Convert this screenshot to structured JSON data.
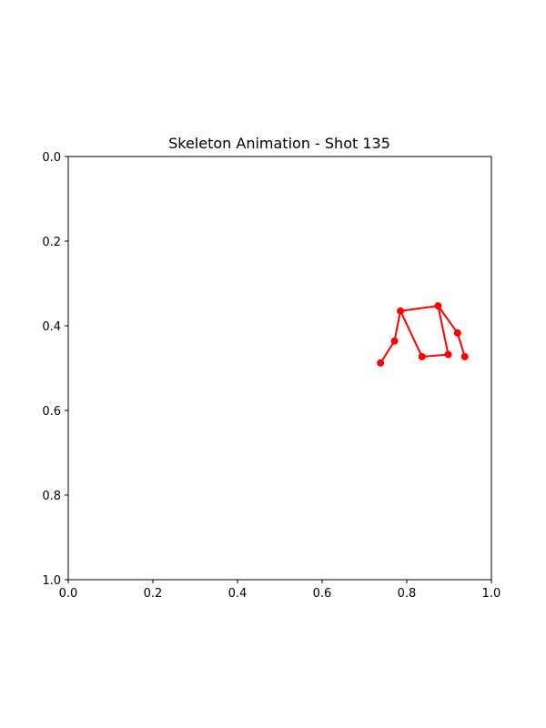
{
  "chart_data": {
    "type": "line",
    "title": "Skeleton Animation - Shot 135",
    "xlabel": "",
    "ylabel": "",
    "xlim": [
      0.0,
      1.0
    ],
    "ylim": [
      1.0,
      0.0
    ],
    "y_inverted": true,
    "grid": false,
    "x_ticks": [
      "0.0",
      "0.2",
      "0.4",
      "0.6",
      "0.8",
      "1.0"
    ],
    "y_ticks": [
      "0.0",
      "0.2",
      "0.4",
      "0.6",
      "0.8",
      "1.0"
    ],
    "color": "#ff0000",
    "joints": [
      {
        "id": "j0",
        "x": 0.738,
        "y": 0.488
      },
      {
        "id": "j1",
        "x": 0.771,
        "y": 0.436
      },
      {
        "id": "j2",
        "x": 0.785,
        "y": 0.365
      },
      {
        "id": "j3",
        "x": 0.874,
        "y": 0.353
      },
      {
        "id": "j4",
        "x": 0.92,
        "y": 0.417
      },
      {
        "id": "j5",
        "x": 0.937,
        "y": 0.473
      },
      {
        "id": "j6",
        "x": 0.836,
        "y": 0.473
      },
      {
        "id": "j7",
        "x": 0.898,
        "y": 0.468
      }
    ],
    "bones": [
      [
        "j0",
        "j1"
      ],
      [
        "j1",
        "j2"
      ],
      [
        "j2",
        "j3"
      ],
      [
        "j3",
        "j4"
      ],
      [
        "j4",
        "j5"
      ],
      [
        "j2",
        "j6"
      ],
      [
        "j6",
        "j7"
      ],
      [
        "j7",
        "j3"
      ]
    ]
  }
}
